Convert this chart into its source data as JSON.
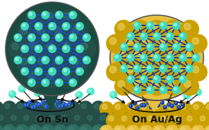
{
  "bg_color": "#ffffff",
  "left_label": "On Sn",
  "right_label": "On Au/Ag",
  "sn_dark": "#1a4a40",
  "sn_mid": "#254e48",
  "sn_light": "#2e6b60",
  "sn_highlight": "#4a9988",
  "au_dark": "#8a6600",
  "au_mid": "#c9a000",
  "au_bright": "#e8c040",
  "au_highlight": "#f5e080",
  "bond_color_left": "#1a4acc",
  "bond_color_right": "#1a3a99",
  "atom_cyan": "#40d8b8",
  "atom_cyan2": "#50e8c8",
  "label_fontsize": 10,
  "label_fontweight": "bold",
  "arrow_color": "#111111"
}
